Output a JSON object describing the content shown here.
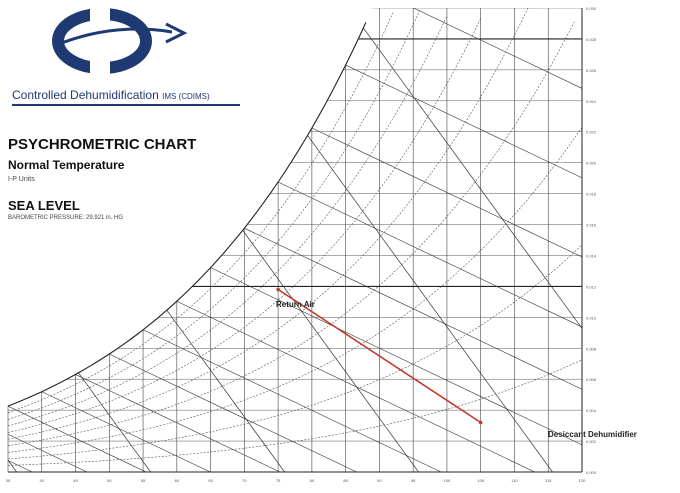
{
  "brand": {
    "company": "Controlled Dehumidification",
    "suffix": "IMS (CDIMS)",
    "color": "#1f3a73"
  },
  "chart_titles": {
    "title": "PSYCHROMETRIC CHART",
    "subtitle": "Normal Temperature",
    "units": "I-P Units",
    "elevation": "SEA LEVEL",
    "pressure": "BAROMETRIC PRESSURE: 29.921 in. HG"
  },
  "chart_data": {
    "type": "line",
    "x_range": [
      35,
      120
    ],
    "y_range": [
      0,
      0.03
    ],
    "x_ticks": [
      35,
      40,
      45,
      50,
      55,
      60,
      65,
      70,
      75,
      80,
      85,
      90,
      95,
      100,
      105,
      110,
      115,
      120
    ],
    "y_ticks": [
      0,
      0.002,
      0.004,
      0.006,
      0.008,
      0.01,
      0.012,
      0.014,
      0.016,
      0.018,
      0.02,
      0.022,
      0.024,
      0.026,
      0.028,
      0.03
    ],
    "rh_curves": [
      10,
      20,
      30,
      40,
      50,
      60,
      70,
      80,
      90,
      100
    ],
    "process": {
      "color": "#c0392b",
      "points": [
        {
          "label": "Return Air",
          "x": 75,
          "y": 0.0118
        },
        {
          "label": "Desiccant Dehumidifier",
          "x": 105,
          "y": 0.0032
        }
      ]
    },
    "grid": true
  }
}
